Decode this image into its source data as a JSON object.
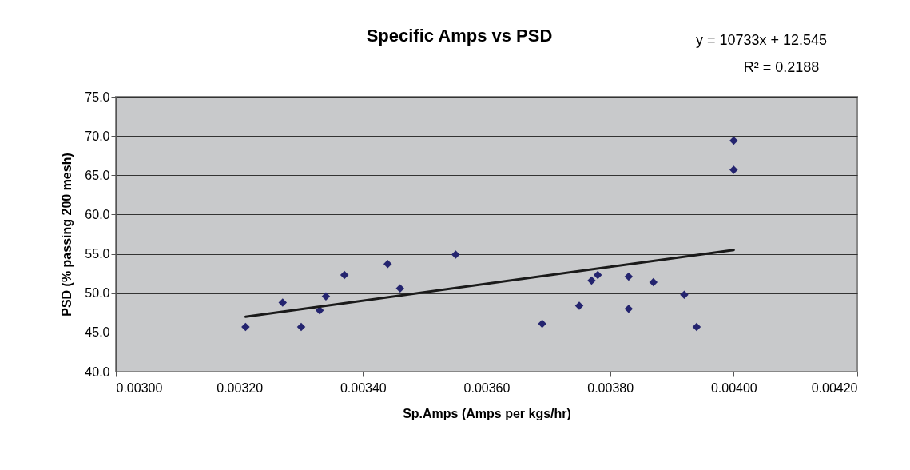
{
  "chart_data": {
    "type": "scatter",
    "title": "Specific Amps vs PSD",
    "xlabel": "Sp.Amps (Amps per kgs/hr)",
    "ylabel": "PSD (% passing 200 mesh)",
    "annotations": [
      "y = 10733x + 12.545",
      "R² = 0.2188"
    ],
    "series": [
      {
        "color": "#24246f",
        "marker": "diamond",
        "x": [
          0.00321,
          0.00327,
          0.0033,
          0.00333,
          0.00334,
          0.00337,
          0.00344,
          0.00346,
          0.00355,
          0.00369,
          0.00375,
          0.00377,
          0.00378,
          0.00383,
          0.00383,
          0.00387,
          0.00392,
          0.00394,
          0.004,
          0.004
        ],
        "values": [
          45.7,
          48.8,
          45.7,
          47.8,
          49.6,
          52.3,
          53.7,
          50.6,
          54.9,
          46.1,
          48.4,
          51.6,
          52.3,
          52.1,
          48.0,
          51.4,
          49.8,
          45.7,
          69.4,
          65.7
        ]
      },
      {
        "type": "line",
        "color": "#1a1a1a",
        "x": [
          0.00321,
          0.004
        ],
        "values": [
          47.0,
          55.5
        ]
      }
    ],
    "xlim": [
      0.003,
      0.0042
    ],
    "xticks": [
      {
        "value": 0.003,
        "label": "0.00300"
      },
      {
        "value": 0.0032,
        "label": "0.00320"
      },
      {
        "value": 0.0034,
        "label": "0.00340"
      },
      {
        "value": 0.0036,
        "label": "0.00360"
      },
      {
        "value": 0.0038,
        "label": "0.00380"
      },
      {
        "value": 0.004,
        "label": "0.00400"
      },
      {
        "value": 0.0042,
        "label": "0.00420"
      }
    ],
    "ylim": [
      40,
      75
    ],
    "yticks": [
      {
        "value": 40,
        "label": "40.0"
      },
      {
        "value": 45,
        "label": "45.0"
      },
      {
        "value": 50,
        "label": "50.0"
      },
      {
        "value": 55,
        "label": "55.0"
      },
      {
        "value": 60,
        "label": "60.0"
      },
      {
        "value": 65,
        "label": "65.0"
      },
      {
        "value": 70,
        "label": "70.0"
      },
      {
        "value": 75,
        "label": "75.0"
      }
    ],
    "grid": "y"
  }
}
